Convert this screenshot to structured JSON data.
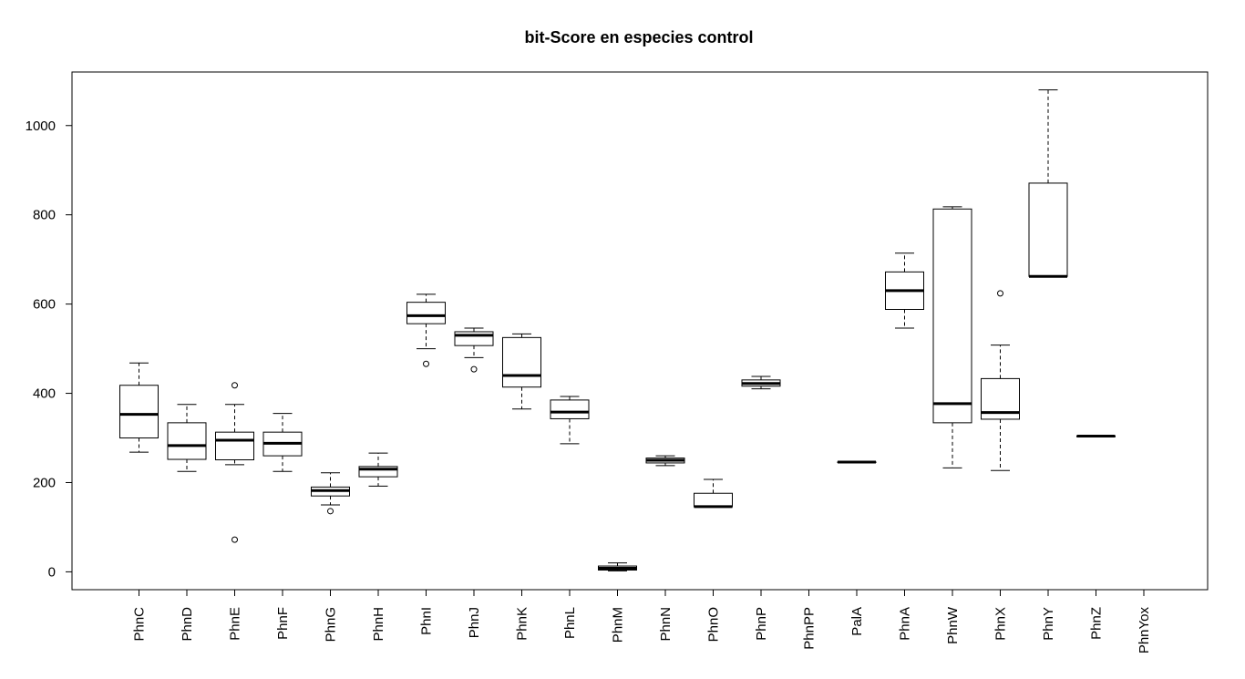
{
  "chart_data": {
    "type": "boxplot",
    "title": "bit-Score en especies control",
    "xlabel": "",
    "ylabel": "",
    "ylim": [
      -40,
      1120
    ],
    "yticks": [
      0,
      200,
      400,
      600,
      800,
      1000
    ],
    "yticks_labels": [
      "0",
      "200",
      "400",
      "600",
      "800",
      "1000"
    ],
    "grid": false,
    "legend": "none",
    "categories": [
      "PhnC",
      "PhnD",
      "PhnE",
      "PhnF",
      "PhnG",
      "PhnH",
      "PhnI",
      "PhnJ",
      "PhnK",
      "PhnL",
      "PhnM",
      "PhnN",
      "PhnO",
      "PhnP",
      "PhnPP",
      "PalA",
      "PhnA",
      "PhnW",
      "PhnX",
      "PhnY",
      "PhnZ",
      "PhnYox"
    ],
    "boxes": [
      {
        "category": "PhnC",
        "min": 268,
        "q1": 300,
        "median": 353,
        "q3": 418,
        "max": 468,
        "outliers": []
      },
      {
        "category": "PhnD",
        "min": 225,
        "q1": 252,
        "median": 283,
        "q3": 334,
        "max": 375,
        "outliers": []
      },
      {
        "category": "PhnE",
        "min": 240,
        "q1": 251,
        "median": 295,
        "q3": 313,
        "max": 375,
        "outliers": [
          418,
          72
        ]
      },
      {
        "category": "PhnF",
        "min": 225,
        "q1": 260,
        "median": 288,
        "q3": 313,
        "max": 355,
        "outliers": []
      },
      {
        "category": "PhnG",
        "min": 150,
        "q1": 170,
        "median": 182,
        "q3": 190,
        "max": 222,
        "outliers": [
          136
        ]
      },
      {
        "category": "PhnH",
        "min": 192,
        "q1": 213,
        "median": 230,
        "q3": 236,
        "max": 266,
        "outliers": []
      },
      {
        "category": "PhnI",
        "min": 500,
        "q1": 556,
        "median": 574,
        "q3": 604,
        "max": 622,
        "outliers": [
          466
        ]
      },
      {
        "category": "PhnJ",
        "min": 480,
        "q1": 507,
        "median": 530,
        "q3": 538,
        "max": 546,
        "outliers": [
          454
        ]
      },
      {
        "category": "PhnK",
        "min": 365,
        "q1": 414,
        "median": 440,
        "q3": 525,
        "max": 533,
        "outliers": []
      },
      {
        "category": "PhnL",
        "min": 287,
        "q1": 343,
        "median": 358,
        "q3": 385,
        "max": 393,
        "outliers": []
      },
      {
        "category": "PhnM",
        "min": 2,
        "q1": 4,
        "median": 8,
        "q3": 13,
        "max": 20,
        "outliers": []
      },
      {
        "category": "PhnN",
        "min": 238,
        "q1": 244,
        "median": 250,
        "q3": 255,
        "max": 260,
        "outliers": []
      },
      {
        "category": "PhnO",
        "min": 146,
        "q1": 146,
        "median": 146,
        "q3": 176,
        "max": 207,
        "outliers": []
      },
      {
        "category": "PhnP",
        "min": 410,
        "q1": 416,
        "median": 422,
        "q3": 430,
        "max": 438,
        "outliers": []
      },
      {
        "category": "PhnPP",
        "min": null,
        "q1": null,
        "median": null,
        "q3": null,
        "max": null,
        "outliers": []
      },
      {
        "category": "PalA",
        "min": 246,
        "q1": 246,
        "median": 246,
        "q3": 246,
        "max": 246,
        "outliers": []
      },
      {
        "category": "PhnA",
        "min": 546,
        "q1": 588,
        "median": 630,
        "q3": 672,
        "max": 714,
        "outliers": []
      },
      {
        "category": "PhnW",
        "min": 233,
        "q1": 334,
        "median": 377,
        "q3": 813,
        "max": 818,
        "outliers": []
      },
      {
        "category": "PhnX",
        "min": 227,
        "q1": 342,
        "median": 357,
        "q3": 433,
        "max": 508,
        "outliers": [
          624
        ]
      },
      {
        "category": "PhnY",
        "min": 662,
        "q1": 662,
        "median": 662,
        "q3": 871,
        "max": 1080,
        "outliers": []
      },
      {
        "category": "PhnZ",
        "min": 304,
        "q1": 304,
        "median": 304,
        "q3": 304,
        "max": 304,
        "outliers": []
      },
      {
        "category": "PhnYox",
        "min": null,
        "q1": null,
        "median": null,
        "q3": null,
        "max": null,
        "outliers": []
      }
    ]
  }
}
